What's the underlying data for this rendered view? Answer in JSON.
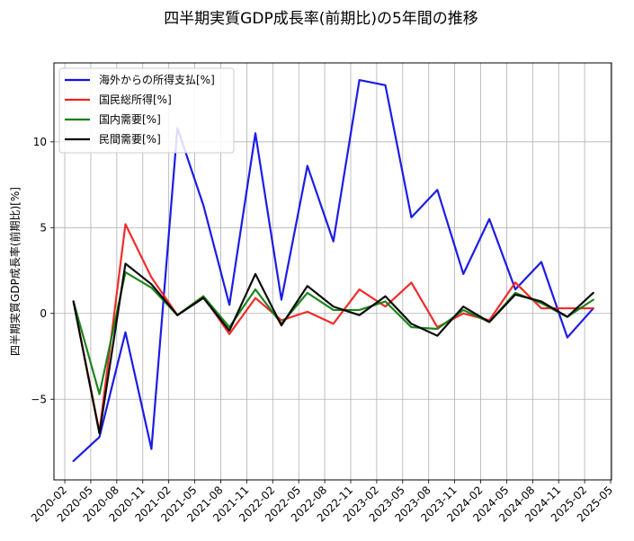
{
  "chart_data": {
    "type": "line",
    "title": "四半期実質GDP成長率(前期比)の5年間の推移",
    "xlabel": "",
    "ylabel": "四半期実質GDP成長率(前期比)[%]",
    "x_ticks": [
      "2020-02",
      "2020-05",
      "2020-08",
      "2020-11",
      "2021-02",
      "2021-05",
      "2021-08",
      "2021-11",
      "2022-02",
      "2022-05",
      "2022-08",
      "2022-11",
      "2023-02",
      "2023-05",
      "2023-08",
      "2023-11",
      "2024-02",
      "2024-05",
      "2024-08",
      "2024-11",
      "2025-02",
      "2025-05"
    ],
    "y_ticks": [
      -5,
      0,
      5,
      10
    ],
    "ylim": [
      -9.7,
      14.6
    ],
    "grid": true,
    "legend_position": "top-left",
    "x": [
      "2020-03",
      "2020-06",
      "2020-09",
      "2020-12",
      "2021-03",
      "2021-06",
      "2021-09",
      "2021-12",
      "2022-03",
      "2022-06",
      "2022-09",
      "2022-12",
      "2023-03",
      "2023-06",
      "2023-09",
      "2023-12",
      "2024-03",
      "2024-06",
      "2024-09",
      "2024-12",
      "2025-03"
    ],
    "series": [
      {
        "name": "海外からの所得支払[%]",
        "color": "#1010e6",
        "values": [
          -8.6,
          -7.2,
          -1.1,
          -7.9,
          10.8,
          6.3,
          0.5,
          10.5,
          0.8,
          8.6,
          4.2,
          13.6,
          13.3,
          5.6,
          7.2,
          2.3,
          5.5,
          1.4,
          3.0,
          -1.4,
          0.3
        ]
      },
      {
        "name": "国民総所得[%]",
        "color": "#f22020",
        "values": [
          0.7,
          -6.9,
          5.2,
          2.1,
          -0.1,
          1.0,
          -1.2,
          0.9,
          -0.4,
          0.1,
          -0.6,
          1.4,
          0.4,
          1.8,
          -0.8,
          0.0,
          -0.4,
          1.8,
          0.3,
          0.3,
          0.3
        ]
      },
      {
        "name": "国内需要[%]",
        "color": "#108010",
        "values": [
          0.7,
          -4.7,
          2.4,
          1.5,
          -0.1,
          1.0,
          -0.8,
          1.4,
          -0.6,
          1.2,
          0.2,
          0.2,
          0.7,
          -0.8,
          -0.9,
          0.2,
          -0.5,
          1.2,
          0.6,
          -0.2,
          0.8
        ]
      },
      {
        "name": "民間需要[%]",
        "color": "#000000",
        "values": [
          0.7,
          -7.0,
          2.9,
          1.7,
          -0.1,
          0.9,
          -1.0,
          2.3,
          -0.7,
          1.6,
          0.4,
          -0.1,
          1.0,
          -0.6,
          -1.3,
          0.4,
          -0.5,
          1.1,
          0.7,
          -0.2,
          1.2
        ]
      }
    ]
  }
}
